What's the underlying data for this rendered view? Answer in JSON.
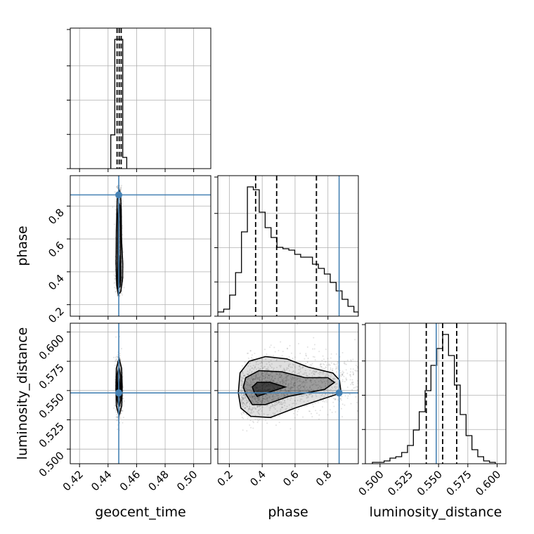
{
  "chart_data": {
    "type": "corner",
    "parameters": [
      "geocent_time",
      "phase",
      "luminosity_distance"
    ],
    "axis_labels": {
      "geocent_time": "geocent_time",
      "phase": "phase",
      "luminosity_distance": "luminosity_distance"
    },
    "ranges": {
      "geocent_time": [
        0.4135,
        0.512
      ],
      "phase": [
        0.13,
        0.985
      ],
      "luminosity_distance": [
        0.4875,
        0.6075
      ]
    },
    "ticks": {
      "geocent_time": [
        0.42,
        0.44,
        0.46,
        0.48,
        0.5
      ],
      "phase": [
        0.2,
        0.4,
        0.6,
        0.8
      ],
      "luminosity_distance": [
        0.5,
        0.525,
        0.55,
        0.575,
        0.6
      ]
    },
    "tick_labels": {
      "geocent_time": [
        "0.42",
        "0.44",
        "0.46",
        "0.48",
        "0.50"
      ],
      "phase": [
        "0.2",
        "0.4",
        "0.6",
        "0.8"
      ],
      "luminosity_distance": [
        "0.500",
        "0.525",
        "0.550",
        "0.575",
        "0.600"
      ]
    },
    "truths": {
      "geocent_time": 0.4475,
      "phase": 0.868,
      "luminosity_distance": 0.548
    },
    "quantiles": {
      "geocent_time": [
        0.4463,
        0.4478,
        0.4492
      ],
      "phase": [
        0.36,
        0.488,
        0.73
      ],
      "luminosity_distance": [
        0.5395,
        0.5535,
        0.5655
      ]
    },
    "histograms": {
      "geocent_time": {
        "edges": [
          0.4419,
          0.4447,
          0.4475,
          0.4503,
          0.4531
        ],
        "counts": [
          0.24,
          0.92,
          0.92,
          0.08
        ]
      },
      "phase": {
        "edges": [
          0.13,
          0.166,
          0.202,
          0.238,
          0.274,
          0.31,
          0.346,
          0.382,
          0.418,
          0.454,
          0.49,
          0.526,
          0.562,
          0.598,
          0.634,
          0.67,
          0.706,
          0.742,
          0.778,
          0.814,
          0.85,
          0.886,
          0.922,
          0.958,
          0.985
        ],
        "counts": [
          0.03,
          0.05,
          0.15,
          0.31,
          0.6,
          0.92,
          0.9,
          0.74,
          0.63,
          0.56,
          0.49,
          0.48,
          0.47,
          0.44,
          0.42,
          0.42,
          0.37,
          0.34,
          0.3,
          0.24,
          0.18,
          0.12,
          0.07,
          0.03
        ]
      },
      "luminosity_distance": {
        "edges": [
          0.4935,
          0.4985,
          0.5035,
          0.5085,
          0.5135,
          0.5185,
          0.5235,
          0.5285,
          0.5335,
          0.5385,
          0.5435,
          0.5485,
          0.5535,
          0.5585,
          0.5635,
          0.5685,
          0.5735,
          0.5785,
          0.5835,
          0.5885,
          0.5935,
          0.5985
        ],
        "counts": [
          0.01,
          0.01,
          0.02,
          0.04,
          0.05,
          0.08,
          0.13,
          0.24,
          0.37,
          0.52,
          0.7,
          0.82,
          0.92,
          0.77,
          0.56,
          0.35,
          0.2,
          0.1,
          0.05,
          0.02,
          0.01
        ]
      }
    },
    "contours": {
      "phase_vs_geocent_time": [
        {
          "level": "inner",
          "points": [
            [
              0.4473,
              0.32
            ],
            [
              0.4483,
              0.35
            ],
            [
              0.4482,
              0.42
            ],
            [
              0.4478,
              0.5
            ],
            [
              0.4474,
              0.42
            ],
            [
              0.4471,
              0.36
            ]
          ]
        },
        {
          "level": "middle",
          "points": [
            [
              0.447,
              0.3
            ],
            [
              0.4484,
              0.31
            ],
            [
              0.449,
              0.37
            ],
            [
              0.4488,
              0.55
            ],
            [
              0.4486,
              0.72
            ],
            [
              0.4483,
              0.8
            ],
            [
              0.4476,
              0.82
            ],
            [
              0.4469,
              0.75
            ],
            [
              0.4467,
              0.55
            ],
            [
              0.4467,
              0.38
            ]
          ]
        },
        {
          "level": "outer",
          "points": [
            [
              0.4472,
              0.26
            ],
            [
              0.4489,
              0.28
            ],
            [
              0.4502,
              0.36
            ],
            [
              0.4503,
              0.45
            ],
            [
              0.4494,
              0.6
            ],
            [
              0.4492,
              0.78
            ],
            [
              0.4487,
              0.88
            ],
            [
              0.4476,
              0.9
            ],
            [
              0.4464,
              0.84
            ],
            [
              0.4458,
              0.65
            ],
            [
              0.4456,
              0.45
            ],
            [
              0.446,
              0.32
            ]
          ]
        }
      ],
      "luminosity_distance_vs_geocent_time": [
        {
          "level": "inner",
          "points": [
            [
              0.4477,
              0.5435
            ],
            [
              0.4482,
              0.549
            ],
            [
              0.4482,
              0.556
            ],
            [
              0.4477,
              0.56
            ],
            [
              0.4471,
              0.556
            ],
            [
              0.4471,
              0.549
            ]
          ]
        },
        {
          "level": "middle",
          "points": [
            [
              0.4477,
              0.536
            ],
            [
              0.4489,
              0.542
            ],
            [
              0.4491,
              0.553
            ],
            [
              0.4488,
              0.563
            ],
            [
              0.4477,
              0.5695
            ],
            [
              0.4465,
              0.564
            ],
            [
              0.4463,
              0.553
            ],
            [
              0.4465,
              0.542
            ]
          ]
        },
        {
          "level": "outer",
          "points": [
            [
              0.4477,
              0.5285
            ],
            [
              0.4496,
              0.537
            ],
            [
              0.4499,
              0.553
            ],
            [
              0.4495,
              0.569
            ],
            [
              0.4477,
              0.5775
            ],
            [
              0.4458,
              0.569
            ],
            [
              0.4455,
              0.553
            ],
            [
              0.4458,
              0.537
            ]
          ]
        }
      ],
      "luminosity_distance_vs_phase": [
        {
          "level": "inner",
          "points": [
            [
              0.35,
              0.549
            ],
            [
              0.37,
              0.545
            ],
            [
              0.43,
              0.548
            ],
            [
              0.54,
              0.553
            ],
            [
              0.45,
              0.557
            ],
            [
              0.37,
              0.557
            ],
            [
              0.34,
              0.553
            ]
          ]
        },
        {
          "level": "middle",
          "points": [
            [
              0.3,
              0.547
            ],
            [
              0.34,
              0.538
            ],
            [
              0.42,
              0.538
            ],
            [
              0.56,
              0.545
            ],
            [
              0.78,
              0.551
            ],
            [
              0.84,
              0.557
            ],
            [
              0.8,
              0.561
            ],
            [
              0.66,
              0.561
            ],
            [
              0.52,
              0.566
            ],
            [
              0.38,
              0.567
            ],
            [
              0.3,
              0.561
            ],
            [
              0.285,
              0.553
            ]
          ]
        },
        {
          "level": "outer",
          "points": [
            [
              0.27,
              0.535
            ],
            [
              0.33,
              0.528
            ],
            [
              0.45,
              0.527
            ],
            [
              0.6,
              0.535
            ],
            [
              0.75,
              0.542
            ],
            [
              0.88,
              0.548
            ],
            [
              0.87,
              0.559
            ],
            [
              0.83,
              0.565
            ],
            [
              0.68,
              0.57
            ],
            [
              0.55,
              0.577
            ],
            [
              0.42,
              0.579
            ],
            [
              0.32,
              0.575
            ],
            [
              0.265,
              0.565
            ],
            [
              0.255,
              0.548
            ]
          ]
        }
      ]
    },
    "samples": {
      "geocent_time": {
        "center": 0.4477,
        "spread": 0.0011
      },
      "phase": {
        "center": 0.5,
        "spread": 0.2
      },
      "luminosity_distance": {
        "center": 0.553,
        "spread": 0.012
      }
    }
  },
  "colors": {
    "truth": "#4682b4",
    "contour": "#000000",
    "grid": "#b0b0b0",
    "density": "#000000"
  }
}
